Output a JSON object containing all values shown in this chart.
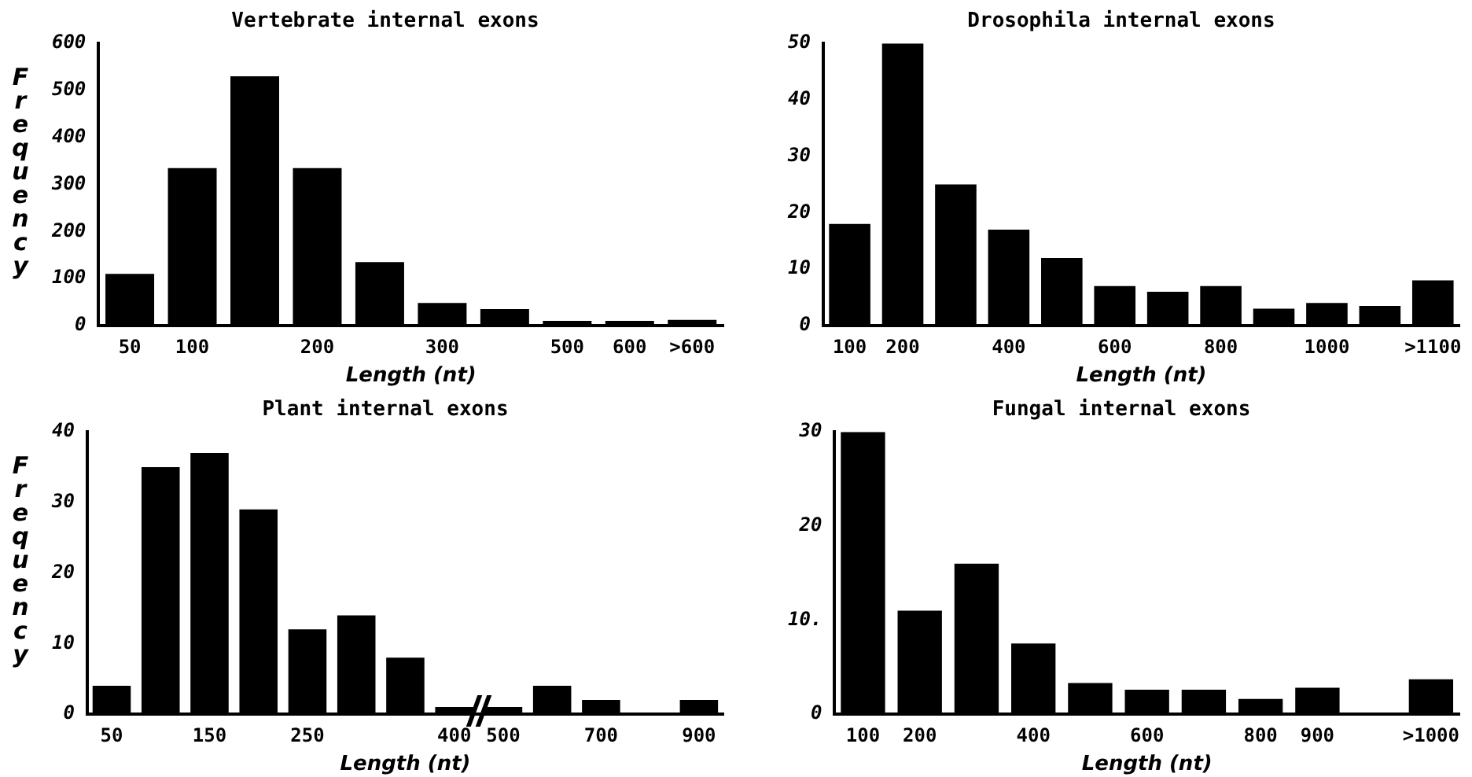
{
  "chart_data": [
    {
      "type": "bar",
      "title": "Vertebrate internal exons",
      "xlabel": "Length (nt)",
      "ylabel": "Frequency",
      "categories": [
        "50",
        "100",
        null,
        "200",
        null,
        "300",
        null,
        "500",
        "600",
        ">600"
      ],
      "values": [
        110,
        335,
        530,
        335,
        135,
        48,
        35,
        10,
        10,
        12
      ],
      "color": "#000000",
      "ylim": [
        0,
        600
      ],
      "yticks": [
        0,
        100,
        200,
        300,
        400,
        500,
        600
      ],
      "grid": false,
      "legend": false
    },
    {
      "type": "bar",
      "title": "Drosophila internal exons",
      "xlabel": "Length (nt)",
      "categories": [
        "100",
        "200",
        null,
        "400",
        null,
        "600",
        null,
        "800",
        null,
        "1000",
        null,
        ">1100"
      ],
      "values": [
        18,
        50,
        25,
        17,
        12,
        7,
        6,
        7,
        3,
        4,
        3.5,
        8
      ],
      "color": "#000000",
      "ylim": [
        0,
        50
      ],
      "yticks": [
        0,
        10,
        20,
        30,
        40,
        50
      ],
      "grid": false,
      "legend": false
    },
    {
      "type": "bar",
      "title": "Plant internal exons",
      "xlabel": "Length (nt)",
      "ylabel": "Frequency",
      "categories": [
        "50",
        null,
        "150",
        null,
        "250",
        null,
        null,
        "400",
        "500",
        null,
        "700",
        null,
        "900"
      ],
      "values": [
        4,
        35,
        37,
        29,
        12,
        14,
        8,
        1,
        1,
        4,
        2,
        0,
        2
      ],
      "color": "#000000",
      "ylim": [
        0,
        40
      ],
      "yticks": [
        0,
        10,
        20,
        30,
        40
      ],
      "grid": false,
      "legend": false
    },
    {
      "type": "bar",
      "title": "Fungal internal exons",
      "xlabel": "Length (nt)",
      "categories": [
        "100",
        "200",
        null,
        "400",
        null,
        "600",
        null,
        "800",
        "900",
        null,
        ">1000"
      ],
      "values": [
        30,
        11,
        16,
        7.5,
        3.3,
        2.6,
        2.6,
        1.6,
        2.8,
        0,
        3.7
      ],
      "color": "#000000",
      "ylim": [
        0,
        30
      ],
      "yticks": [
        0,
        20,
        {
          "value": 10,
          "label": "10."
        },
        30
      ],
      "grid": false,
      "legend": false
    }
  ]
}
